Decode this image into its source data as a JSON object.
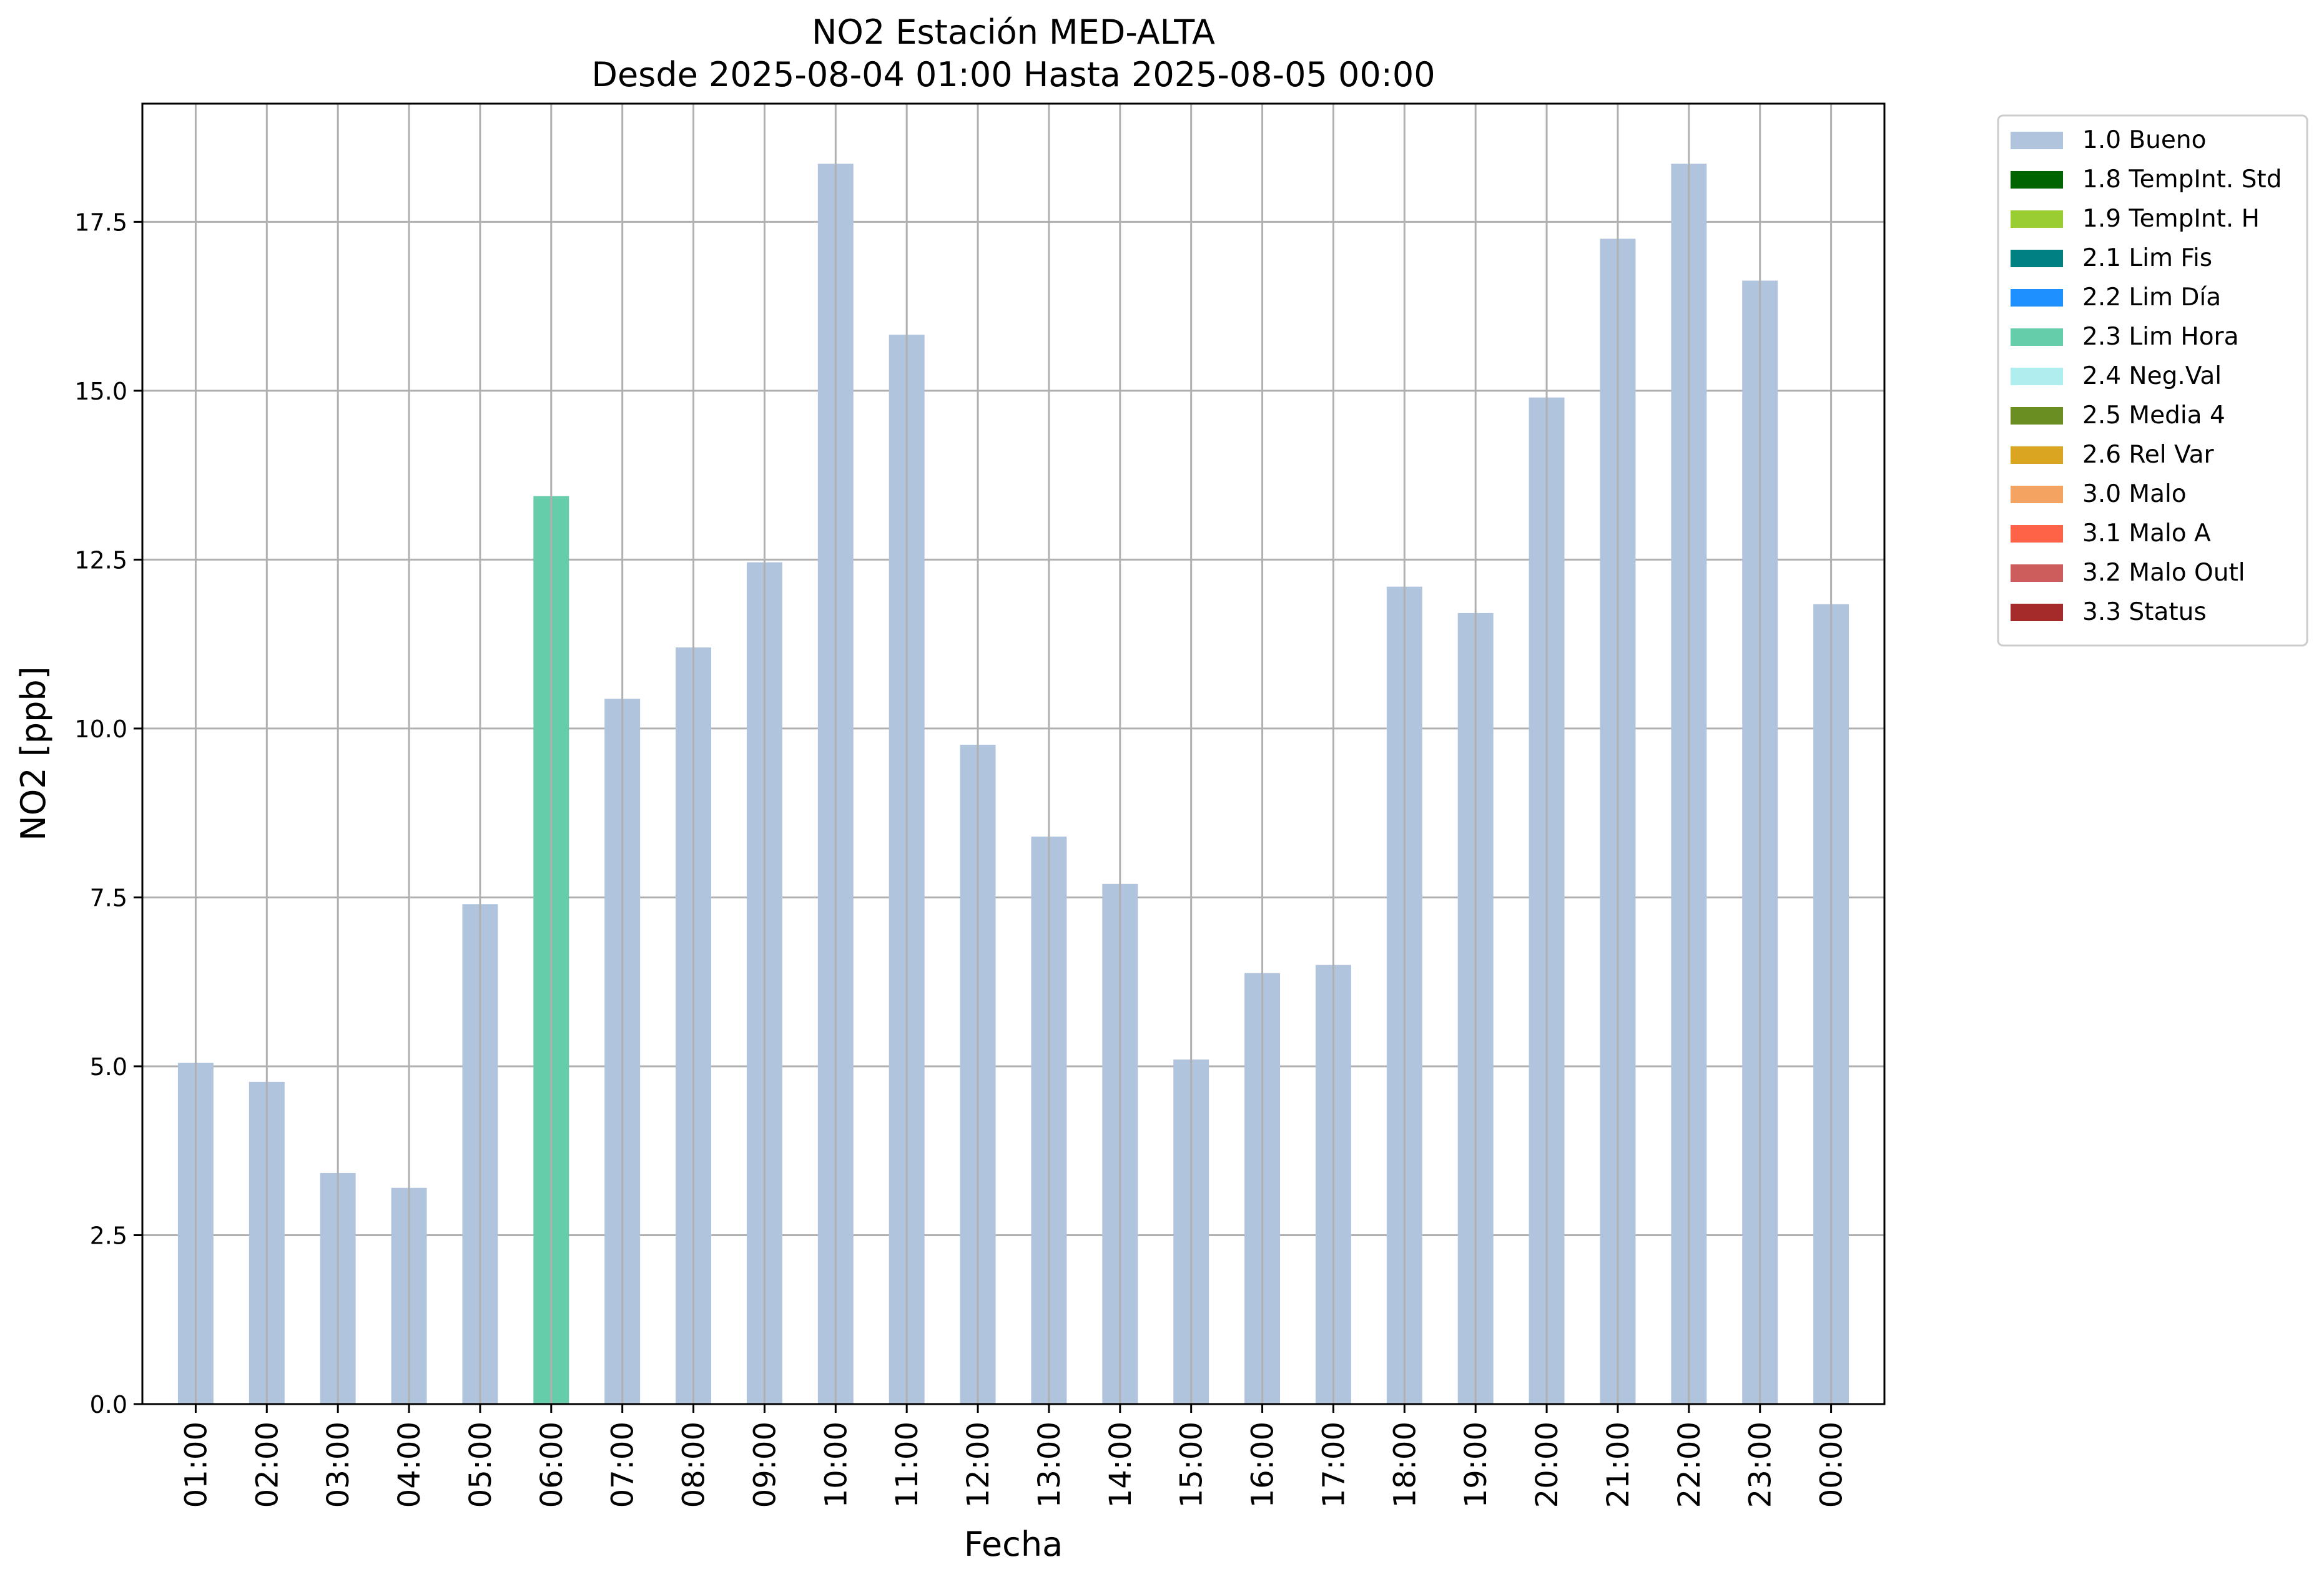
{
  "chart_data": {
    "type": "bar",
    "title": "NO2 Estación MED-ALTA",
    "subtitle": "Desde 2025-08-04 01:00 Hasta 2025-08-05 00:00",
    "xlabel": "Fecha",
    "ylabel": "NO2 [ppb]",
    "ylim": [
      0,
      19.25
    ],
    "yticks": [
      "0.0",
      "2.5",
      "5.0",
      "7.5",
      "10.0",
      "12.5",
      "15.0",
      "17.5"
    ],
    "grid": true,
    "legend_position": "outside top-right",
    "categories": [
      "01:00",
      "02:00",
      "03:00",
      "04:00",
      "05:00",
      "06:00",
      "07:00",
      "08:00",
      "09:00",
      "10:00",
      "11:00",
      "12:00",
      "13:00",
      "14:00",
      "15:00",
      "16:00",
      "17:00",
      "18:00",
      "19:00",
      "20:00",
      "21:00",
      "22:00",
      "23:00",
      "00:00"
    ],
    "values": [
      5.05,
      4.77,
      3.42,
      3.2,
      7.4,
      13.44,
      10.44,
      11.2,
      12.46,
      18.36,
      15.83,
      9.76,
      8.4,
      7.7,
      5.1,
      6.38,
      6.5,
      12.1,
      11.71,
      14.9,
      17.25,
      18.36,
      16.63,
      11.84
    ],
    "bar_flags": [
      "1.0 Bueno",
      "1.0 Bueno",
      "1.0 Bueno",
      "1.0 Bueno",
      "1.0 Bueno",
      "2.3 Lim Hora",
      "1.0 Bueno",
      "1.0 Bueno",
      "1.0 Bueno",
      "1.0 Bueno",
      "1.0 Bueno",
      "1.0 Bueno",
      "1.0 Bueno",
      "1.0 Bueno",
      "1.0 Bueno",
      "1.0 Bueno",
      "1.0 Bueno",
      "1.0 Bueno",
      "1.0 Bueno",
      "1.0 Bueno",
      "1.0 Bueno",
      "1.0 Bueno",
      "1.0 Bueno",
      "1.0 Bueno"
    ],
    "legend": [
      {
        "label": "1.0 Bueno",
        "color": "#b0c4de"
      },
      {
        "label": "1.8 TempInt. Std",
        "color": "#006400"
      },
      {
        "label": "1.9 TempInt. H",
        "color": "#9acd32"
      },
      {
        "label": "2.1 Lim Fis",
        "color": "#008080"
      },
      {
        "label": "2.2 Lim Día",
        "color": "#1e90ff"
      },
      {
        "label": "2.3 Lim Hora",
        "color": "#66cdaa"
      },
      {
        "label": "2.4 Neg.Val",
        "color": "#afeeee"
      },
      {
        "label": "2.5 Media 4",
        "color": "#6b8e23"
      },
      {
        "label": "2.6 Rel Var",
        "color": "#daa520"
      },
      {
        "label": "3.0 Malo",
        "color": "#f4a460"
      },
      {
        "label": "3.1 Malo A",
        "color": "#ff6347"
      },
      {
        "label": "3.2 Malo Outl",
        "color": "#cd5c5c"
      },
      {
        "label": "3.3 Status",
        "color": "#a52a2a"
      }
    ]
  }
}
